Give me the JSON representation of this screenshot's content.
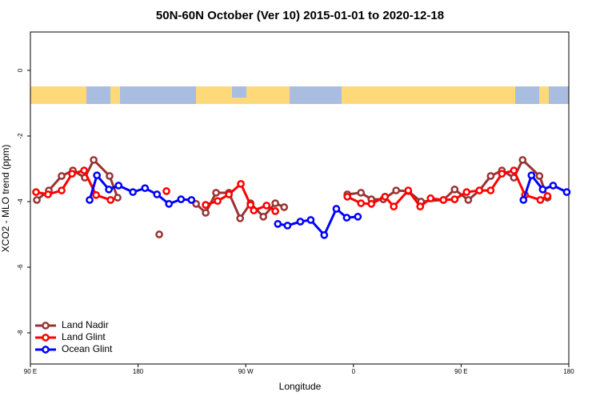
{
  "chart_data": {
    "type": "line",
    "title": "50N-60N October (Ver 10)   2015-01-01 to 2020-12-18",
    "xlabel": "Longitude",
    "ylabel": "XCO2 - MLO trend (ppm)",
    "xlim": [
      90,
      540
    ],
    "xticks": [
      {
        "value": 90,
        "label": "90 E"
      },
      {
        "value": 180,
        "label": "180"
      },
      {
        "value": 270,
        "label": "90 W"
      },
      {
        "value": 360,
        "label": "0"
      },
      {
        "value": 450,
        "label": "90 E"
      },
      {
        "value": 540,
        "label": "180"
      }
    ],
    "ylim": [
      -8.95,
      1.17
    ],
    "yticks": [
      -8,
      -6,
      -4,
      -2,
      0
    ],
    "legend": "bottom-left",
    "series": [
      {
        "name": "Land Nadir",
        "color": "#993333",
        "x": [
          95.4,
          105.4,
          116.1,
          125.5,
          135.5,
          142.9,
          156.2,
          162.9,
          null,
          197.7,
          null,
          228.5,
          236.5,
          245.2,
          255.9,
          265.3,
          274,
          284.7,
          294.7,
          302.1,
          null,
          354.9,
          366.3,
          375,
          385,
          395.7,
          405.8,
          416.5,
          435.2,
          444.6,
          456,
          465.3,
          474.7,
          484.1,
          494.1,
          501.4,
          515.5,
          522.2
        ],
        "values": [
          -3.95,
          -3.66,
          -3.22,
          -3.05,
          -3.27,
          -2.73,
          -3.22,
          -3.88,
          null,
          -5.0,
          null,
          -4.07,
          -4.34,
          -3.73,
          -3.73,
          -4.51,
          -4.05,
          -4.46,
          -4.05,
          -4.17,
          null,
          -3.78,
          -3.73,
          -3.93,
          -3.93,
          -3.66,
          -3.68,
          -4.0,
          -3.95,
          -3.63,
          -3.95,
          -3.66,
          -3.22,
          -3.05,
          -3.27,
          -2.73,
          -3.22,
          -3.88
        ]
      },
      {
        "name": "Land Glint",
        "color": "#ff0000",
        "x": [
          94.7,
          104.7,
          116.1,
          124.8,
          134.9,
          144.9,
          157,
          null,
          203.7,
          null,
          236.5,
          246.5,
          255.9,
          265.9,
          274,
          276.7,
          287.4,
          294.7,
          null,
          354.9,
          366.3,
          375,
          386.4,
          393.7,
          405.8,
          415.8,
          424.5,
          435.2,
          444.6,
          454.6,
          465.3,
          474.7,
          484.1,
          494.1,
          503.4,
          516.2,
          522.2
        ],
        "values": [
          -3.71,
          -3.78,
          -3.66,
          -3.15,
          -3.05,
          -3.8,
          -3.95,
          null,
          -3.68,
          null,
          -4.1,
          -3.98,
          -3.78,
          -3.46,
          -4.1,
          -4.27,
          -4.12,
          -4.29,
          null,
          -3.85,
          -4.05,
          -4.07,
          -3.85,
          -4.15,
          -3.66,
          -4.15,
          -3.9,
          -3.95,
          -3.93,
          -3.71,
          -3.66,
          -3.66,
          -3.15,
          -3.05,
          -3.8,
          -3.95,
          -3.83
        ]
      },
      {
        "name": "Ocean Glint",
        "color": "#0000ff",
        "x": [
          139.5,
          145.6,
          155.6,
          163.7,
          175.7,
          185.8,
          195.8,
          205.8,
          215.9,
          224.6,
          null,
          296.8,
          304.9,
          315.6,
          324.3,
          335.6,
          345.7,
          354.4,
          363.7,
          null,
          502.1,
          508.8,
          518.2,
          526.9,
          538.3
        ],
        "values": [
          -3.95,
          -3.2,
          -3.63,
          -3.51,
          -3.71,
          -3.59,
          -3.78,
          -4.07,
          -3.93,
          -3.95,
          null,
          -4.68,
          -4.73,
          -4.61,
          -4.56,
          -5.02,
          -4.22,
          -4.49,
          -4.46,
          null,
          -3.95,
          -3.2,
          -3.63,
          -3.51,
          -3.71
        ]
      }
    ]
  }
}
